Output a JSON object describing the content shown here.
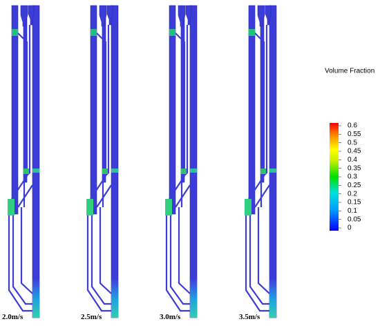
{
  "panels": [
    {
      "label": "2.0m/s"
    },
    {
      "label": "2.5m/s"
    },
    {
      "label": "3.0m/s"
    },
    {
      "label": "3.5m/s"
    }
  ],
  "colorbar": {
    "title": "Volume Fraction",
    "range": [
      0,
      0.6
    ],
    "ticks": [
      0.6,
      0.55,
      0.5,
      0.45,
      0.4,
      0.35,
      0.3,
      0.25,
      0.2,
      0.15,
      0.1,
      0.05,
      0
    ]
  }
}
